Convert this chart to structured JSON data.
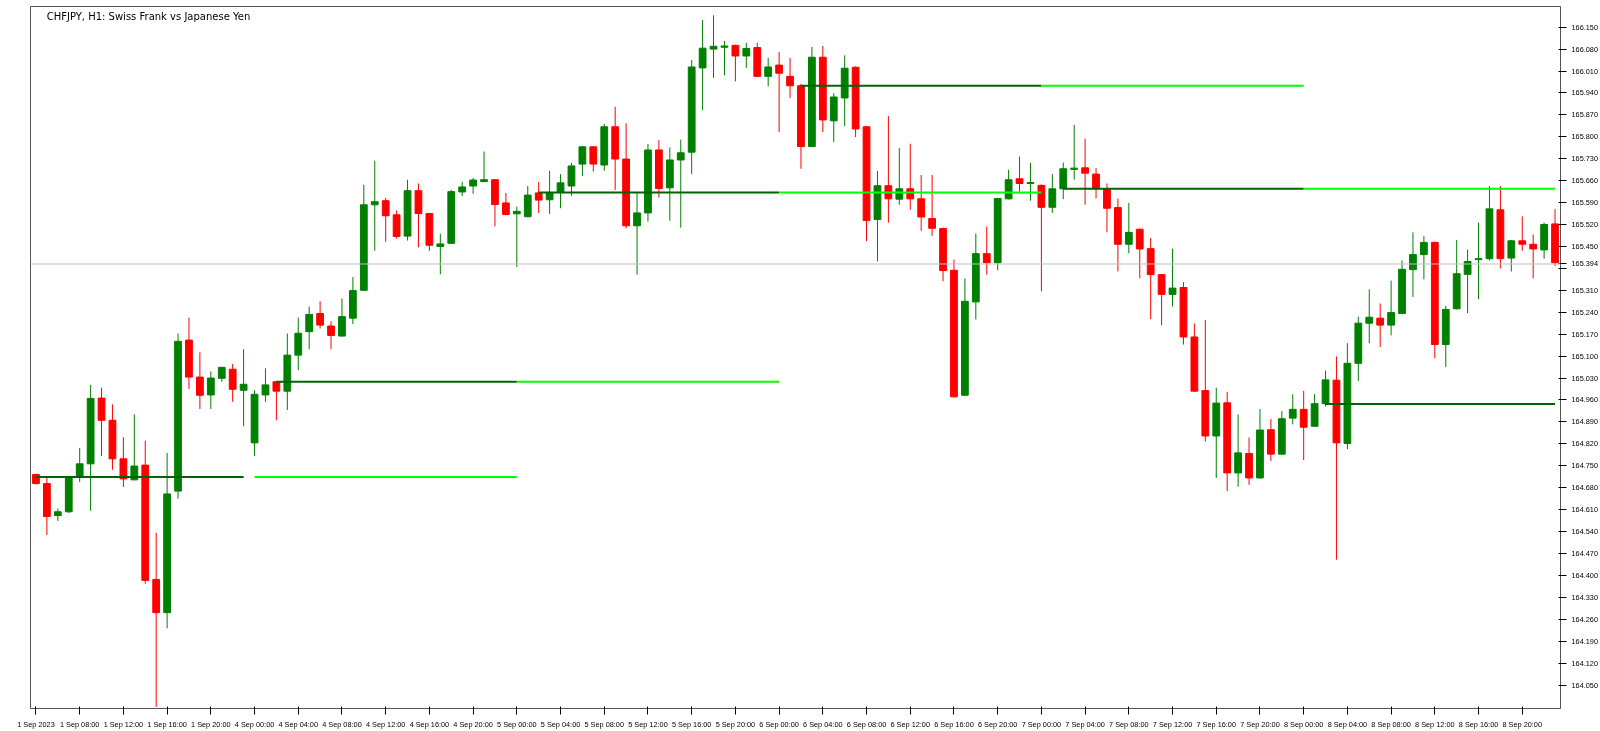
{
  "chart_data": {
    "type": "candlestick",
    "title": "CHFJPY, H1: Swiss Frank vs Japanese Yen",
    "categories": [
      "1 Sep 2023",
      null,
      null,
      null,
      "1 Sep 08:00",
      null,
      null,
      null,
      "1 Sep 12:00",
      null,
      null,
      null,
      "1 Sep 16:00",
      null,
      null,
      null,
      "1 Sep 20:00",
      null,
      null,
      null,
      "4 Sep 00:00",
      null,
      null,
      null,
      "4 Sep 04:00",
      null,
      null,
      null,
      "4 Sep 08:00",
      null,
      null,
      null,
      "4 Sep 12:00",
      null,
      null,
      null,
      "4 Sep 16:00",
      null,
      null,
      null,
      "4 Sep 20:00",
      null,
      null,
      null,
      "5 Sep 00:00",
      null,
      null,
      null,
      "5 Sep 04:00",
      null,
      null,
      null,
      "5 Sep 08:00",
      null,
      null,
      null,
      "5 Sep 12:00",
      null,
      null,
      null,
      "5 Sep 16:00",
      null,
      null,
      null,
      "5 Sep 20:00",
      null,
      null,
      null,
      "6 Sep 00:00",
      null,
      null,
      null,
      "6 Sep 04:00",
      null,
      null,
      null,
      "6 Sep 08:00",
      null,
      null,
      null,
      "6 Sep 12:00",
      null,
      null,
      null,
      "6 Sep 16:00",
      null,
      null,
      null,
      "6 Sep 20:00",
      null,
      null,
      null,
      "7 Sep 00:00",
      null,
      null,
      null,
      "7 Sep 04:00",
      null,
      null,
      null,
      "7 Sep 08:00",
      null,
      null,
      null,
      "7 Sep 12:00",
      null,
      null,
      null,
      "7 Sep 16:00",
      null,
      null,
      null,
      "7 Sep 20:00",
      null,
      null,
      null,
      "8 Sep 00:00",
      null,
      null,
      null,
      "8 Sep 04:00",
      null,
      null,
      null,
      "8 Sep 08:00",
      null,
      null,
      null,
      "8 Sep 12:00",
      null,
      null,
      null,
      "8 Sep 16:00",
      null,
      null,
      null,
      "8 Sep 20:00",
      null,
      null,
      null
    ],
    "ohlc": [
      [
        164.722,
        164.725,
        164.69,
        164.693
      ],
      [
        164.693,
        164.715,
        164.529,
        164.588
      ],
      [
        164.591,
        164.613,
        164.574,
        164.603
      ],
      [
        164.603,
        164.715,
        164.599,
        164.712
      ],
      [
        164.715,
        164.807,
        164.698,
        164.756
      ],
      [
        164.756,
        165.008,
        164.606,
        164.965
      ],
      [
        164.966,
        164.999,
        164.781,
        164.895
      ],
      [
        164.895,
        164.946,
        164.737,
        164.772
      ],
      [
        164.772,
        164.841,
        164.682,
        164.708
      ],
      [
        164.705,
        164.914,
        164.703,
        164.749
      ],
      [
        164.752,
        164.83,
        164.373,
        164.384
      ],
      [
        164.387,
        164.536,
        163.98,
        164.281
      ],
      [
        164.281,
        164.791,
        164.231,
        164.66
      ],
      [
        164.669,
        165.172,
        164.645,
        165.147
      ],
      [
        165.151,
        165.223,
        164.995,
        165.033
      ],
      [
        165.033,
        165.112,
        164.931,
        164.975
      ],
      [
        164.976,
        165.051,
        164.931,
        165.03
      ],
      [
        165.029,
        165.066,
        165.018,
        165.064
      ],
      [
        165.058,
        165.075,
        164.954,
        164.994
      ],
      [
        164.991,
        165.122,
        164.876,
        165.01
      ],
      [
        164.823,
        164.991,
        164.781,
        164.978
      ],
      [
        164.976,
        165.061,
        164.954,
        165.008
      ],
      [
        165.018,
        165.021,
        164.895,
        164.988
      ],
      [
        164.988,
        165.172,
        164.928,
        165.103
      ],
      [
        165.103,
        165.223,
        165.055,
        165.173
      ],
      [
        165.178,
        165.258,
        165.122,
        165.233
      ],
      [
        165.236,
        165.275,
        165.188,
        165.199
      ],
      [
        165.196,
        165.211,
        165.122,
        165.166
      ],
      [
        165.164,
        165.284,
        165.162,
        165.226
      ],
      [
        165.221,
        165.352,
        165.202,
        165.309
      ],
      [
        165.31,
        165.647,
        165.308,
        165.583
      ],
      [
        165.583,
        165.724,
        165.436,
        165.593
      ],
      [
        165.596,
        165.605,
        165.465,
        165.548
      ],
      [
        165.551,
        165.565,
        165.475,
        165.482
      ],
      [
        165.483,
        165.663,
        165.469,
        165.628
      ],
      [
        165.628,
        165.651,
        165.447,
        165.555
      ],
      [
        165.555,
        165.557,
        165.436,
        165.454
      ],
      [
        165.45,
        165.491,
        165.361,
        165.458
      ],
      [
        165.46,
        165.631,
        165.458,
        165.625
      ],
      [
        165.624,
        165.657,
        165.611,
        165.64
      ],
      [
        165.643,
        165.669,
        165.618,
        165.662
      ],
      [
        165.657,
        165.753,
        165.655,
        165.663
      ],
      [
        165.663,
        165.665,
        165.514,
        165.584
      ],
      [
        165.589,
        165.621,
        165.549,
        165.552
      ],
      [
        165.554,
        165.577,
        165.384,
        165.562
      ],
      [
        165.545,
        165.643,
        165.543,
        165.614
      ],
      [
        165.621,
        165.656,
        165.557,
        165.598
      ],
      [
        165.599,
        165.691,
        165.554,
        165.622
      ],
      [
        165.622,
        165.681,
        165.572,
        165.653
      ],
      [
        165.643,
        165.717,
        165.612,
        165.707
      ],
      [
        165.713,
        165.771,
        165.675,
        165.768
      ],
      [
        165.768,
        165.77,
        165.689,
        165.713
      ],
      [
        165.71,
        165.841,
        165.692,
        165.832
      ],
      [
        165.832,
        165.896,
        165.63,
        165.729
      ],
      [
        165.729,
        165.843,
        165.508,
        165.516
      ],
      [
        165.516,
        165.622,
        165.36,
        165.557
      ],
      [
        165.557,
        165.777,
        165.529,
        165.758
      ],
      [
        165.758,
        165.789,
        165.606,
        165.635
      ],
      [
        165.637,
        165.766,
        165.532,
        165.726
      ],
      [
        165.726,
        165.791,
        165.51,
        165.749
      ],
      [
        165.751,
        166.045,
        165.681,
        166.023
      ],
      [
        166.02,
        166.173,
        165.885,
        166.083
      ],
      [
        166.08,
        166.188,
        165.988,
        166.089
      ],
      [
        166.086,
        166.106,
        165.996,
        166.09
      ],
      [
        166.092,
        166.094,
        165.977,
        166.058
      ],
      [
        166.058,
        166.1,
        166.02,
        166.082
      ],
      [
        166.085,
        166.1,
        165.991,
        165.993
      ],
      [
        165.993,
        166.052,
        165.961,
        166.023
      ],
      [
        166.029,
        166.071,
        165.815,
        166.003
      ],
      [
        165.993,
        166.052,
        165.924,
        165.963
      ],
      [
        165.963,
        165.969,
        165.698,
        165.769
      ],
      [
        165.769,
        166.087,
        165.767,
        166.054
      ],
      [
        166.054,
        166.09,
        165.815,
        165.854
      ],
      [
        165.851,
        165.939,
        165.783,
        165.927
      ],
      [
        165.924,
        166.06,
        165.834,
        166.019
      ],
      [
        166.022,
        166.025,
        165.799,
        165.825
      ],
      [
        165.832,
        165.834,
        165.467,
        165.533
      ],
      [
        165.536,
        165.691,
        165.402,
        165.644
      ],
      [
        165.644,
        165.866,
        165.526,
        165.602
      ],
      [
        165.601,
        165.764,
        165.583,
        165.634
      ],
      [
        165.634,
        165.778,
        165.567,
        165.602
      ],
      [
        165.602,
        165.678,
        165.5,
        165.544
      ],
      [
        165.539,
        165.678,
        165.484,
        165.508
      ],
      [
        165.507,
        165.51,
        165.339,
        165.373
      ],
      [
        165.374,
        165.408,
        164.968,
        164.97
      ],
      [
        164.975,
        165.348,
        164.973,
        165.275
      ],
      [
        165.273,
        165.491,
        165.217,
        165.427
      ],
      [
        165.427,
        165.513,
        165.36,
        165.398
      ],
      [
        165.398,
        165.605,
        165.374,
        165.603
      ],
      [
        165.602,
        165.695,
        165.6,
        165.663
      ],
      [
        165.666,
        165.737,
        165.625,
        165.651
      ],
      [
        165.651,
        165.717,
        165.596,
        165.654
      ],
      [
        165.645,
        165.648,
        165.307,
        165.575
      ],
      [
        165.575,
        165.681,
        165.557,
        165.634
      ],
      [
        165.634,
        165.718,
        165.601,
        165.698
      ],
      [
        165.696,
        165.838,
        165.663,
        165.7
      ],
      [
        165.701,
        165.794,
        165.583,
        165.684
      ],
      [
        165.681,
        165.7,
        165.603,
        165.634
      ],
      [
        165.634,
        165.651,
        165.495,
        165.572
      ],
      [
        165.574,
        165.603,
        165.37,
        165.457
      ],
      [
        165.457,
        165.589,
        165.428,
        165.495
      ],
      [
        165.505,
        165.507,
        165.348,
        165.442
      ],
      [
        165.443,
        165.477,
        165.218,
        165.36
      ],
      [
        165.36,
        165.362,
        165.198,
        165.297
      ],
      [
        165.297,
        165.443,
        165.258,
        165.317
      ],
      [
        165.319,
        165.336,
        165.137,
        165.161
      ],
      [
        165.161,
        165.204,
        164.986,
        164.988
      ],
      [
        164.99,
        165.215,
        164.827,
        164.845
      ],
      [
        164.845,
        164.999,
        164.711,
        164.95
      ],
      [
        164.951,
        164.986,
        164.669,
        164.727
      ],
      [
        164.727,
        164.914,
        164.683,
        164.791
      ],
      [
        164.789,
        164.84,
        164.689,
        164.711
      ],
      [
        164.711,
        164.931,
        164.709,
        164.864
      ],
      [
        164.865,
        164.899,
        164.765,
        164.787
      ],
      [
        164.787,
        164.924,
        164.785,
        164.9
      ],
      [
        164.902,
        164.978,
        164.882,
        164.93
      ],
      [
        164.93,
        164.989,
        164.768,
        164.873
      ],
      [
        164.876,
        164.979,
        164.874,
        164.948
      ],
      [
        164.948,
        165.054,
        164.939,
        165.024
      ],
      [
        165.023,
        165.099,
        164.45,
        164.823
      ],
      [
        164.821,
        165.141,
        164.803,
        165.077
      ],
      [
        165.077,
        165.226,
        165.021,
        165.205
      ],
      [
        165.205,
        165.313,
        165.141,
        165.224
      ],
      [
        165.221,
        165.268,
        165.129,
        165.199
      ],
      [
        165.199,
        165.341,
        165.166,
        165.239
      ],
      [
        165.236,
        165.405,
        165.234,
        165.377
      ],
      [
        165.376,
        165.495,
        165.289,
        165.424
      ],
      [
        165.424,
        165.483,
        165.345,
        165.463
      ],
      [
        165.463,
        165.465,
        165.093,
        165.137
      ],
      [
        165.137,
        165.26,
        165.065,
        165.249
      ],
      [
        165.251,
        165.471,
        165.249,
        165.363
      ],
      [
        165.361,
        165.44,
        165.237,
        165.402
      ],
      [
        165.408,
        165.526,
        165.282,
        165.411
      ],
      [
        165.411,
        165.643,
        165.405,
        165.57
      ],
      [
        165.567,
        165.643,
        165.38,
        165.411
      ],
      [
        165.413,
        165.471,
        165.37,
        165.468
      ],
      [
        165.468,
        165.546,
        165.436,
        165.457
      ],
      [
        165.457,
        165.488,
        165.348,
        165.442
      ],
      [
        165.439,
        165.526,
        165.411,
        165.52
      ],
      [
        165.522,
        165.569,
        165.388,
        165.398
      ]
    ],
    "colors": [
      "#ff0000",
      "#ff0000",
      "#008000",
      "#008000",
      "#008000",
      "#008000",
      "#ff0000",
      "#ff0000",
      "#ff0000",
      "#008000",
      "#ff0000",
      "#ff0000",
      "#008000",
      "#008000",
      "#ff0000",
      "#ff0000",
      "#008000",
      "#008000",
      "#ff0000",
      "#008000",
      "#008000",
      "#008000",
      "#ff0000",
      "#008000",
      "#008000",
      "#008000",
      "#ff0000",
      "#ff0000",
      "#008000",
      "#008000",
      "#008000",
      "#008000",
      "#ff0000",
      "#ff0000",
      "#008000",
      "#ff0000",
      "#ff0000",
      "#008000",
      "#008000",
      "#008000",
      "#008000",
      "#008000",
      "#ff0000",
      "#ff0000",
      "#008000",
      "#008000",
      "#ff0000",
      "#008000",
      "#008000",
      "#008000",
      "#008000",
      "#ff0000",
      "#008000",
      "#ff0000",
      "#ff0000",
      "#008000",
      "#008000",
      "#ff0000",
      "#008000",
      "#008000",
      "#008000",
      "#008000",
      "#008000",
      "#008000",
      "#ff0000",
      "#008000",
      "#ff0000",
      "#008000",
      "#ff0000",
      "#ff0000",
      "#ff0000",
      "#008000",
      "#ff0000",
      "#008000",
      "#008000",
      "#ff0000",
      "#ff0000",
      "#008000",
      "#ff0000",
      "#008000",
      "#ff0000",
      "#ff0000",
      "#ff0000",
      "#ff0000",
      "#ff0000",
      "#008000",
      "#008000",
      "#ff0000",
      "#008000",
      "#008000",
      "#ff0000",
      "#008000",
      "#ff0000",
      "#008000",
      "#008000",
      "#008000",
      "#ff0000",
      "#ff0000",
      "#ff0000",
      "#ff0000",
      "#008000",
      "#ff0000",
      "#ff0000",
      "#ff0000",
      "#008000",
      "#ff0000",
      "#ff0000",
      "#ff0000",
      "#008000",
      "#ff0000",
      "#008000",
      "#ff0000",
      "#008000",
      "#ff0000",
      "#008000",
      "#008000",
      "#ff0000",
      "#008000",
      "#008000",
      "#ff0000",
      "#008000",
      "#008000",
      "#008000",
      "#ff0000",
      "#008000",
      "#008000",
      "#008000",
      "#008000",
      "#ff0000",
      "#008000",
      "#008000",
      "#008000",
      "#008000",
      "#008000",
      "#ff0000",
      "#008000",
      "#ff0000",
      "#ff0000",
      "#008000",
      "#ff0000"
    ],
    "series": [
      {
        "type": "line",
        "color": "#006400",
        "values": [
          164.714,
          164.714,
          164.714,
          164.714,
          164.714,
          164.714,
          164.714,
          164.714,
          164.714,
          164.714,
          164.714,
          164.714,
          164.714,
          164.714,
          164.714,
          164.714,
          164.714,
          164.714,
          164.714,
          164.714,
          null,
          null,
          165.018,
          165.018,
          165.018,
          165.018,
          165.018,
          165.018,
          165.018,
          165.018,
          165.018,
          165.018,
          165.018,
          165.018,
          165.018,
          165.018,
          165.018,
          165.018,
          165.018,
          165.018,
          165.018,
          165.018,
          165.018,
          165.018,
          165.018,
          null,
          165.622,
          165.622,
          165.622,
          165.622,
          165.622,
          165.622,
          165.622,
          165.622,
          165.622,
          165.622,
          165.622,
          165.622,
          165.622,
          165.622,
          165.622,
          165.622,
          165.622,
          165.622,
          165.622,
          165.622,
          165.622,
          165.622,
          165.622,
          null,
          165.963,
          165.963,
          165.963,
          165.963,
          165.963,
          165.963,
          165.963,
          165.963,
          165.963,
          165.963,
          165.963,
          165.963,
          165.963,
          165.963,
          165.963,
          165.963,
          165.963,
          165.963,
          165.963,
          165.963,
          165.963,
          165.963,
          165.963,
          null,
          165.634,
          165.634,
          165.634,
          165.634,
          165.634,
          165.634,
          165.634,
          165.634,
          165.634,
          165.634,
          165.634,
          165.634,
          165.634,
          165.634,
          165.634,
          165.634,
          165.634,
          165.634,
          165.634,
          165.634,
          165.634,
          165.634,
          165.634,
          null,
          164.947,
          164.947,
          164.947,
          164.947,
          164.947,
          164.947,
          164.947,
          164.947,
          164.947,
          164.947,
          164.947,
          164.947,
          164.947,
          164.947,
          164.947,
          164.947,
          164.947,
          164.947,
          164.947,
          164.947,
          164.947,
          164.947
        ]
      },
      {
        "type": "line",
        "color": "#00ff00",
        "values": [
          null,
          null,
          null,
          null,
          null,
          null,
          null,
          null,
          null,
          null,
          null,
          null,
          null,
          null,
          null,
          null,
          null,
          null,
          null,
          null,
          164.714,
          164.714,
          164.714,
          164.714,
          164.714,
          164.714,
          164.714,
          164.714,
          164.714,
          164.714,
          164.714,
          164.714,
          164.714,
          164.714,
          164.714,
          164.714,
          164.714,
          164.714,
          164.714,
          164.714,
          164.714,
          164.714,
          164.714,
          164.714,
          164.714,
          null,
          null,
          null,
          null,
          null,
          null,
          null,
          null,
          null,
          null,
          null,
          null,
          null,
          null,
          null,
          null,
          null,
          null,
          null,
          null,
          null,
          null,
          null,
          165.622,
          165.622,
          165.622,
          165.622,
          165.622,
          165.622,
          165.622,
          165.622,
          165.622,
          165.622,
          165.622,
          165.622,
          165.622,
          165.622,
          165.622,
          165.622,
          165.622,
          165.622,
          165.622,
          165.622,
          165.622,
          165.622,
          165.622,
          165.622,
          165.622,
          null,
          null,
          null,
          null,
          null,
          null,
          null,
          null,
          null,
          null,
          null,
          null,
          null,
          null,
          null,
          null,
          null,
          null,
          null,
          null,
          null,
          null,
          null,
          165.634,
          165.634,
          165.634,
          165.634,
          165.634,
          165.634,
          165.634,
          165.634,
          165.634,
          165.634,
          165.634,
          165.634,
          165.634,
          165.634,
          165.634,
          165.634,
          165.634,
          165.634,
          165.634,
          165.634,
          165.634,
          165.634,
          165.634,
          165.634
        ]
      },
      {
        "type": "line",
        "color": "#00ff00",
        "values": [
          null,
          null,
          null,
          null,
          null,
          null,
          null,
          null,
          null,
          null,
          null,
          null,
          null,
          null,
          null,
          null,
          null,
          null,
          null,
          null,
          null,
          null,
          null,
          null,
          null,
          null,
          null,
          null,
          null,
          null,
          null,
          null,
          null,
          null,
          null,
          null,
          null,
          null,
          null,
          null,
          null,
          null,
          null,
          null,
          165.018,
          165.018,
          165.018,
          165.018,
          165.018,
          165.018,
          165.018,
          165.018,
          165.018,
          165.018,
          165.018,
          165.018,
          165.018,
          165.018,
          165.018,
          165.018,
          165.018,
          165.018,
          165.018,
          165.018,
          165.018,
          165.018,
          165.018,
          165.018,
          165.018,
          null,
          null,
          null,
          null,
          null,
          null,
          null,
          null,
          null,
          null,
          null,
          null,
          null,
          null,
          null,
          null,
          null,
          null,
          null,
          null,
          null,
          null,
          null,
          165.963,
          165.963,
          165.963,
          165.963,
          165.963,
          165.963,
          165.963,
          165.963,
          165.963,
          165.963,
          165.963,
          165.963,
          165.963,
          165.963,
          165.963,
          165.963,
          165.963,
          165.963,
          165.963,
          165.963,
          165.963,
          165.963,
          165.963,
          165.963,
          165.963,
          null,
          null,
          null,
          null,
          null,
          null,
          null,
          null,
          null,
          null,
          null,
          null,
          null,
          null,
          null,
          null,
          null,
          null,
          null,
          null,
          null,
          null,
          null
        ]
      }
    ],
    "ylim": [
      163.975,
      166.216
    ],
    "yticks": [
      {
        "value": 164.05,
        "label": "164.050"
      },
      {
        "value": 164.12,
        "label": "164.120"
      },
      {
        "value": 164.19,
        "label": "164.190"
      },
      {
        "value": 164.26,
        "label": "164.260"
      },
      {
        "value": 164.33,
        "label": "164.330"
      },
      {
        "value": 164.4,
        "label": "164.400"
      },
      {
        "value": 164.47,
        "label": "164.470"
      },
      {
        "value": 164.54,
        "label": "164.540"
      },
      {
        "value": 164.61,
        "label": "164.610"
      },
      {
        "value": 164.68,
        "label": "164.680"
      },
      {
        "value": 164.75,
        "label": "164.750"
      },
      {
        "value": 164.82,
        "label": "164.820"
      },
      {
        "value": 164.89,
        "label": "164.890"
      },
      {
        "value": 164.96,
        "label": "164.960"
      },
      {
        "value": 165.03,
        "label": "165.030"
      },
      {
        "value": 165.1,
        "label": "165.100"
      },
      {
        "value": 165.17,
        "label": "165.170"
      },
      {
        "value": 165.24,
        "label": "165.240"
      },
      {
        "value": 165.31,
        "label": "165.310"
      },
      {
        "value": 165.38,
        "label": null
      },
      {
        "value": 165.45,
        "label": "165.450"
      },
      {
        "value": 165.52,
        "label": "165.520"
      },
      {
        "value": 165.59,
        "label": "165.590"
      },
      {
        "value": 165.66,
        "label": "165.660"
      },
      {
        "value": 165.73,
        "label": "165.730"
      },
      {
        "value": 165.8,
        "label": "165.800"
      },
      {
        "value": 165.87,
        "label": "165.870"
      },
      {
        "value": 165.94,
        "label": "165.940"
      },
      {
        "value": 166.01,
        "label": "166.010"
      },
      {
        "value": 166.08,
        "label": "166.080"
      },
      {
        "value": 166.15,
        "label": "166.150"
      }
    ],
    "ref_lines": [
      {
        "axis": "y",
        "value": 165.394,
        "label": "165.394",
        "color": "#c0c0c0"
      }
    ]
  }
}
